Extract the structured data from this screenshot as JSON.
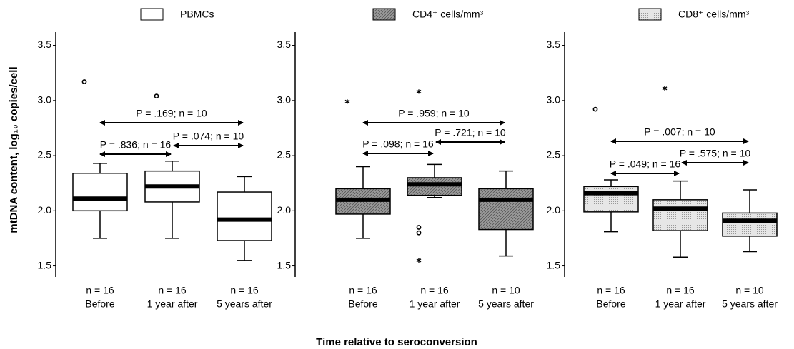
{
  "y_axis_label": "mtDNA content, log₁₀ copies/cell",
  "x_axis_label": "Time relative to seroconversion",
  "chart_data": [
    {
      "type": "box",
      "name": "PBMCs",
      "fill": "white",
      "ylim": [
        1.4,
        3.62
      ],
      "yticks": [
        1.5,
        {
          "value": 2,
          "label": "2.0"
        },
        2.5,
        {
          "value": 3,
          "label": "3.0"
        },
        3.5
      ],
      "categories": [
        "Before",
        "1 year after",
        "5 years after"
      ],
      "n_labels": [
        "n = 16",
        "n = 16",
        "n = 16"
      ],
      "boxes": [
        {
          "whisker_low": 1.75,
          "q1": 2.0,
          "median": 2.11,
          "q3": 2.34,
          "whisker_high": 2.43,
          "outliers": [
            {
              "value": 3.17,
              "marker": "circle"
            }
          ]
        },
        {
          "whisker_low": 1.75,
          "q1": 2.08,
          "median": 2.22,
          "q3": 2.36,
          "whisker_high": 2.45,
          "outliers": [
            {
              "value": 3.04,
              "marker": "circle"
            }
          ]
        },
        {
          "whisker_low": 1.55,
          "q1": 1.73,
          "median": 1.92,
          "q3": 2.17,
          "whisker_high": 2.31,
          "outliers": []
        }
      ],
      "annotations": [
        "P = .169; n = 10",
        "P = .074; n = 10",
        "P = .836; n = 16"
      ]
    },
    {
      "type": "box",
      "name": "CD4⁺ cells/mm³",
      "fill": "hatch",
      "ylim": [
        1.4,
        3.62
      ],
      "yticks": [
        1.5,
        {
          "value": 2,
          "label": "2.0"
        },
        2.5,
        {
          "value": 3,
          "label": "3.0"
        },
        3.5
      ],
      "categories": [
        "Before",
        "1 year after",
        "5 years after"
      ],
      "n_labels": [
        "n = 16",
        "n = 16",
        "n = 10"
      ],
      "boxes": [
        {
          "whisker_low": 1.75,
          "q1": 1.97,
          "median": 2.1,
          "q3": 2.2,
          "whisker_high": 2.4,
          "outliers": [
            {
              "value": 2.99,
              "marker": "star"
            }
          ]
        },
        {
          "whisker_low": 2.12,
          "q1": 2.14,
          "median": 2.24,
          "q3": 2.3,
          "whisker_high": 2.42,
          "outliers": [
            {
              "value": 3.08,
              "marker": "star"
            },
            {
              "value": 1.85,
              "marker": "circle"
            },
            {
              "value": 1.8,
              "marker": "circle"
            },
            {
              "value": 1.55,
              "marker": "star"
            }
          ]
        },
        {
          "whisker_low": 1.59,
          "q1": 1.83,
          "median": 2.1,
          "q3": 2.2,
          "whisker_high": 2.36,
          "outliers": []
        }
      ],
      "annotations": [
        "P = .959; n = 10",
        "P = .721; n = 10",
        "P = .098; n = 16"
      ]
    },
    {
      "type": "box",
      "name": "CD8⁺ cells/mm³",
      "fill": "dots",
      "ylim": [
        1.4,
        3.62
      ],
      "yticks": [
        1.5,
        {
          "value": 2,
          "label": "2.0"
        },
        2.5,
        {
          "value": 3,
          "label": "3.0"
        },
        3.5
      ],
      "categories": [
        "Before",
        "1 year after",
        "5 years after"
      ],
      "n_labels": [
        "n = 16",
        "n = 16",
        "n = 10"
      ],
      "boxes": [
        {
          "whisker_low": 1.81,
          "q1": 1.99,
          "median": 2.16,
          "q3": 2.22,
          "whisker_high": 2.28,
          "outliers": [
            {
              "value": 2.92,
              "marker": "circle"
            }
          ]
        },
        {
          "whisker_low": 1.58,
          "q1": 1.82,
          "median": 2.02,
          "q3": 2.1,
          "whisker_high": 2.27,
          "outliers": [
            {
              "value": 3.11,
              "marker": "star"
            }
          ]
        },
        {
          "whisker_low": 1.63,
          "q1": 1.77,
          "median": 1.91,
          "q3": 1.98,
          "whisker_high": 2.19,
          "outliers": []
        }
      ],
      "annotations": [
        "P = .007; n = 10",
        "P = .575; n = 10",
        "P = .049; n = 16"
      ]
    }
  ]
}
